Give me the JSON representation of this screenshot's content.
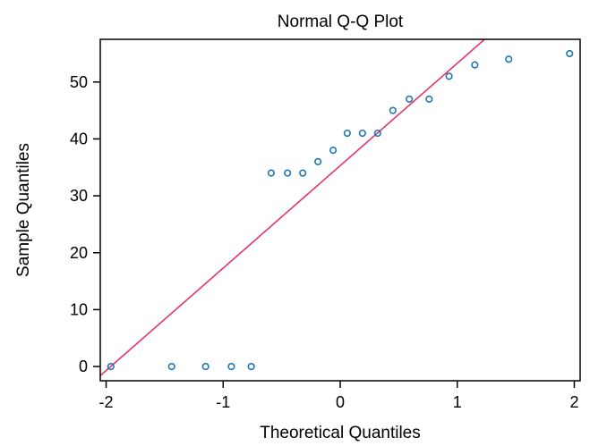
{
  "chart_data": {
    "type": "scatter",
    "title": "Normal Q-Q Plot",
    "xlabel": "Theoretical Quantiles",
    "ylabel": "Sample Quantiles",
    "xlim": [
      -2.05,
      2.05
    ],
    "ylim": [
      -2.5,
      57.5
    ],
    "x_ticks": [
      -2,
      -1,
      0,
      1,
      2
    ],
    "y_ticks": [
      0,
      10,
      20,
      30,
      40,
      50
    ],
    "x_tick_labels": [
      "-2",
      "-1",
      "0",
      "1",
      "2"
    ],
    "y_tick_labels": [
      "0",
      "10",
      "20",
      "30",
      "40",
      "50"
    ],
    "grid": false,
    "legend": "none",
    "point_color": "#1f77b4",
    "line_color": "#e6336b",
    "series": [
      {
        "x": [
          -1.96,
          -1.44,
          -1.15,
          -0.93,
          -0.76,
          -0.59,
          -0.45,
          -0.32,
          -0.19,
          -0.06,
          0.06,
          0.19,
          0.32,
          0.45,
          0.59,
          0.76,
          0.93,
          1.15,
          1.44,
          1.96
        ],
        "y": [
          0,
          0,
          0,
          0,
          0,
          34,
          34,
          34,
          36,
          38,
          41,
          41,
          41,
          45,
          47,
          47,
          51,
          53,
          54,
          55
        ]
      }
    ],
    "reference_line": {
      "intercept": 35.3,
      "slope": 18.0
    }
  }
}
